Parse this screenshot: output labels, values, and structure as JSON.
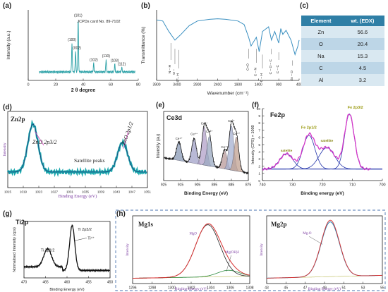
{
  "panel_labels": {
    "a": "(a)",
    "b": "(b)",
    "c": "(c)",
    "d": "(d)",
    "e": "(e)",
    "f": "(f)",
    "g": "(g)",
    "h": "(h)"
  },
  "table": {
    "headers": [
      "Element",
      "wt. (EDX)"
    ],
    "rows": [
      {
        "element": "Zn",
        "value": "56.6"
      },
      {
        "element": "O",
        "value": "20.4"
      },
      {
        "element": "Na",
        "value": "15.3"
      },
      {
        "element": "C",
        "value": "4.5"
      },
      {
        "element": "Al",
        "value": "3.2"
      }
    ]
  },
  "colors": {
    "xrd": "#2aa0a6",
    "ftir": "#3a8fc0",
    "zn_data": "#19a7ad",
    "zn_fit": "#1e3a78",
    "fe_main": "#d438c8",
    "fe_fit": "#2233aa",
    "table_head": "#2f7fa6",
    "mg_env": "#d83030",
    "mg_fit": "#2b8a3e"
  },
  "chart_data": [
    {
      "id": "a",
      "type": "line",
      "title": "",
      "xlabel": "2 θ degree",
      "ylabel": "Intensity (a.u.)",
      "xlim": [
        0,
        80
      ],
      "xticks": [
        "0",
        "20",
        "40",
        "60",
        "80"
      ],
      "annotation": "JCPDs card No. 89-7102",
      "peaks": [
        {
          "x": 31.8,
          "y": 0.5,
          "label": "(100)"
        },
        {
          "x": 34.4,
          "y": 0.36,
          "label": "(002)"
        },
        {
          "x": 36.3,
          "y": 0.92,
          "label": "(101)"
        },
        {
          "x": 47.6,
          "y": 0.15,
          "label": "(102)"
        },
        {
          "x": 56.6,
          "y": 0.22,
          "label": "(110)"
        },
        {
          "x": 62.9,
          "y": 0.14,
          "label": "(103)"
        },
        {
          "x": 68.0,
          "y": 0.08,
          "label": "(112)"
        }
      ]
    },
    {
      "id": "b",
      "type": "line",
      "title": "",
      "xlabel": "Wavenumber (cm⁻¹)",
      "ylabel": "Transmittance (%)",
      "xlim": [
        3900,
        400
      ],
      "xticks": [
        "3900",
        "3400",
        "2900",
        "2400",
        "1900",
        "1400",
        "900",
        "400"
      ],
      "points": [
        [
          3900,
          0.1
        ],
        [
          3750,
          0.12
        ],
        [
          3600,
          0.3
        ],
        [
          3450,
          0.45
        ],
        [
          3300,
          0.35
        ],
        [
          3100,
          0.2
        ],
        [
          2900,
          0.12
        ],
        [
          2600,
          0.09
        ],
        [
          2400,
          0.08
        ],
        [
          2200,
          0.09
        ],
        [
          1900,
          0.12
        ],
        [
          1750,
          0.18
        ],
        [
          1640,
          0.4
        ],
        [
          1580,
          0.55
        ],
        [
          1450,
          0.4
        ],
        [
          1380,
          0.65
        ],
        [
          1300,
          0.3
        ],
        [
          1150,
          0.22
        ],
        [
          1080,
          0.45
        ],
        [
          1000,
          0.3
        ],
        [
          900,
          0.5
        ],
        [
          850,
          0.25
        ],
        [
          800,
          0.35
        ],
        [
          720,
          0.28
        ],
        [
          600,
          0.45
        ],
        [
          500,
          0.7
        ],
        [
          430,
          0.55
        ],
        [
          400,
          0.45
        ]
      ],
      "annotations": [
        "N – H",
        "O –",
        "O – H",
        "C=O",
        "C – N",
        "C – H",
        "C – O – C",
        "C – C",
        "Zn – O"
      ]
    },
    {
      "id": "d",
      "type": "line",
      "title": "Zn2p",
      "xlabel": "Binding Energy (eV)",
      "ylabel": "Intensity",
      "xlim": [
        1015,
        1051
      ],
      "xticks": [
        "1015",
        "1019",
        "1023",
        "1027",
        "1031",
        "1035",
        "1039",
        "1043",
        "1047",
        "1051"
      ],
      "peaks": [
        {
          "x": 1021.5,
          "height": 1.0,
          "label": "ZnO 2p3/2"
        },
        {
          "x": 1044.6,
          "height": 0.62,
          "label": "ZnO 2p1/2"
        }
      ],
      "annotations": [
        "ZnO 2p3/2",
        "ZnO 2p1/2",
        "Satellite peaks"
      ]
    },
    {
      "id": "e",
      "type": "line",
      "title": "Ce3d",
      "xlabel": "Binding Energy (eV)",
      "ylabel": "Intensity (au)",
      "xlim": [
        925,
        875
      ],
      "xticks": [
        "925",
        "915",
        "905",
        "895",
        "885",
        "875"
      ],
      "peaks": [
        {
          "x": 916,
          "height": 0.3,
          "label": "Ce⁴⁺"
        },
        {
          "x": 907,
          "height": 0.4,
          "label": "Ce⁴⁺"
        },
        {
          "x": 901,
          "height": 0.62,
          "label": "Ce³⁺"
        },
        {
          "x": 898,
          "height": 0.48,
          "label": "Ce³⁺"
        },
        {
          "x": 889,
          "height": 0.3,
          "label": "Ce⁴⁺"
        },
        {
          "x": 885,
          "height": 0.72,
          "label": "Ce³⁺"
        },
        {
          "x": 882,
          "height": 0.55,
          "label": "Ce⁴⁺"
        }
      ]
    },
    {
      "id": "f",
      "type": "line",
      "title": "Fe2p",
      "xlabel": "Binding energy (eV)",
      "ylabel": "Intensity (CPS) × 1000",
      "xlim": [
        740,
        700
      ],
      "xticks": [
        "740",
        "730",
        "720",
        "710",
        "700"
      ],
      "ylim": [
        0,
        10
      ],
      "yticks": [
        "0",
        "1",
        "2",
        "3",
        "4",
        "5",
        "6",
        "7",
        "8",
        "9",
        "10"
      ],
      "peaks": [
        {
          "x": 732,
          "height": 2.5,
          "label": "satelite"
        },
        {
          "x": 724.5,
          "height": 5.5,
          "label": "Fe 2p1/2"
        },
        {
          "x": 718.5,
          "height": 3.5,
          "label": "satellite"
        },
        {
          "x": 711.0,
          "height": 9.0,
          "label": "Fe 2p3/2"
        }
      ]
    },
    {
      "id": "g",
      "type": "line",
      "title": "Ti2p",
      "xlabel": "Binding Energy (eV)",
      "ylabel": "Normalised Intensity (cps)",
      "xlim": [
        470,
        450
      ],
      "xticks": [
        "470",
        "465",
        "460",
        "455",
        "450"
      ],
      "peaks": [
        {
          "x": 464.5,
          "height": 0.4,
          "label": "Ti 2p1/2"
        },
        {
          "x": 458.8,
          "height": 1.0,
          "label": "Ti 2p3/2"
        }
      ],
      "annotations": [
        "Ti⁴⁺"
      ]
    },
    {
      "id": "h1",
      "type": "line",
      "title": "Mg1s",
      "xlabel": "Binding Energy (eV)",
      "ylabel": "Intensity",
      "xlim": [
        1296,
        1308
      ],
      "xticks": [
        "1296",
        "1298",
        "1300",
        "1302",
        "1304",
        "1306",
        "1308"
      ],
      "peaks": [
        {
          "x": 1303.7,
          "height": 1.0,
          "label": "MgO"
        },
        {
          "x": 1305.8,
          "height": 0.12,
          "label": "Mg(OH)2"
        }
      ]
    },
    {
      "id": "h2",
      "type": "line",
      "title": "Mg2p",
      "xlabel": "Binding Energy (eV)",
      "ylabel": "Intensity",
      "xlim": [
        43,
        55
      ],
      "xticks": [
        "43",
        "45",
        "47",
        "49",
        "51",
        "53",
        "55"
      ],
      "peaks": [
        {
          "x": 49.6,
          "height": 1.0,
          "label": "Mg-O"
        }
      ]
    }
  ]
}
